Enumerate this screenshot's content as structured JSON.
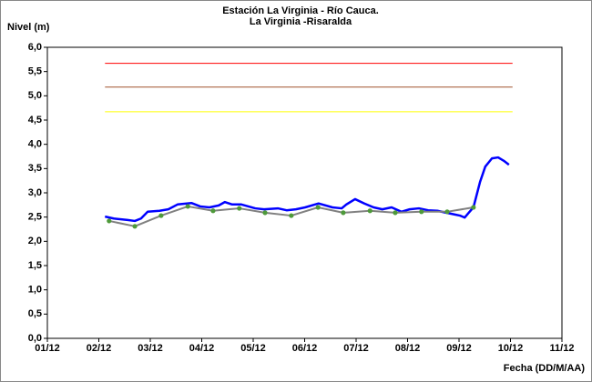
{
  "chart_data": {
    "type": "line",
    "title": [
      "Estación La Virginia  - Río Cauca.",
      "La Virginia -Risaralda"
    ],
    "y_label": "Nivel (m)",
    "x_label": "Fecha (DD/M/AA)",
    "xlim": [
      1,
      11
    ],
    "xticks": [
      {
        "value": 1,
        "label": "01/12"
      },
      {
        "value": 2,
        "label": "02/12"
      },
      {
        "value": 3,
        "label": "03/12"
      },
      {
        "value": 4,
        "label": "04/12"
      },
      {
        "value": 5,
        "label": "05/12"
      },
      {
        "value": 6,
        "label": "06/12"
      },
      {
        "value": 7,
        "label": "07/12"
      },
      {
        "value": 8,
        "label": "08/12"
      },
      {
        "value": 9,
        "label": "09/12"
      },
      {
        "value": 10,
        "label": "10/12"
      },
      {
        "value": 11,
        "label": "11/12"
      }
    ],
    "ylim": [
      0,
      6
    ],
    "yticks": [
      {
        "value": 0,
        "label": "0,0"
      },
      {
        "value": 0.5,
        "label": "0,5"
      },
      {
        "value": 1,
        "label": "1,0"
      },
      {
        "value": 1.5,
        "label": "1,5"
      },
      {
        "value": 2,
        "label": "2,0"
      },
      {
        "value": 2.5,
        "label": "2,5"
      },
      {
        "value": 3,
        "label": "3,0"
      },
      {
        "value": 3.5,
        "label": "3,5"
      },
      {
        "value": 4,
        "label": "4,0"
      },
      {
        "value": 4.5,
        "label": "4,5"
      },
      {
        "value": 5,
        "label": "5,0"
      },
      {
        "value": 5.5,
        "label": "5,5"
      },
      {
        "value": 6,
        "label": "6,0"
      }
    ],
    "grid": false,
    "series": [
      {
        "color": "#ff0000",
        "width": 1,
        "x": [
          2.12,
          10.04
        ],
        "values": [
          5.67,
          5.67
        ]
      },
      {
        "color": "#a0522d",
        "width": 1,
        "x": [
          2.12,
          10.04
        ],
        "values": [
          5.18,
          5.18
        ]
      },
      {
        "color": "#ffff00",
        "width": 1,
        "x": [
          2.12,
          10.04
        ],
        "values": [
          4.67,
          4.67
        ]
      },
      {
        "color": "#0000ff",
        "width": 2.5,
        "x": [
          2.12,
          2.29,
          2.56,
          2.7,
          2.82,
          2.95,
          3.18,
          3.35,
          3.53,
          3.8,
          3.97,
          4.15,
          4.33,
          4.45,
          4.59,
          4.77,
          5.04,
          5.21,
          5.48,
          5.65,
          5.83,
          6.01,
          6.27,
          6.54,
          6.72,
          6.81,
          6.98,
          7.16,
          7.34,
          7.51,
          7.69,
          7.88,
          8.04,
          8.22,
          8.4,
          8.58,
          8.75,
          8.93,
          9.02,
          9.11,
          9.19,
          9.28,
          9.41,
          9.51,
          9.64,
          9.76,
          9.87,
          9.97
        ],
        "values": [
          2.51,
          2.47,
          2.44,
          2.42,
          2.47,
          2.61,
          2.63,
          2.66,
          2.76,
          2.79,
          2.72,
          2.7,
          2.74,
          2.81,
          2.76,
          2.76,
          2.68,
          2.66,
          2.68,
          2.64,
          2.66,
          2.7,
          2.78,
          2.7,
          2.68,
          2.76,
          2.87,
          2.78,
          2.7,
          2.66,
          2.7,
          2.61,
          2.66,
          2.68,
          2.64,
          2.63,
          2.59,
          2.55,
          2.53,
          2.49,
          2.59,
          2.7,
          3.23,
          3.54,
          3.71,
          3.73,
          3.66,
          3.58
        ]
      },
      {
        "color": "#808080",
        "width": 2,
        "marker_color": "#4e9a3a",
        "x": [
          2.2,
          2.7,
          3.21,
          3.73,
          4.22,
          4.73,
          5.23,
          5.74,
          6.26,
          6.75,
          7.27,
          7.76,
          8.27,
          8.77,
          9.28
        ],
        "values": [
          2.42,
          2.31,
          2.53,
          2.72,
          2.63,
          2.68,
          2.59,
          2.53,
          2.7,
          2.59,
          2.63,
          2.59,
          2.61,
          2.61,
          2.7
        ]
      }
    ]
  }
}
